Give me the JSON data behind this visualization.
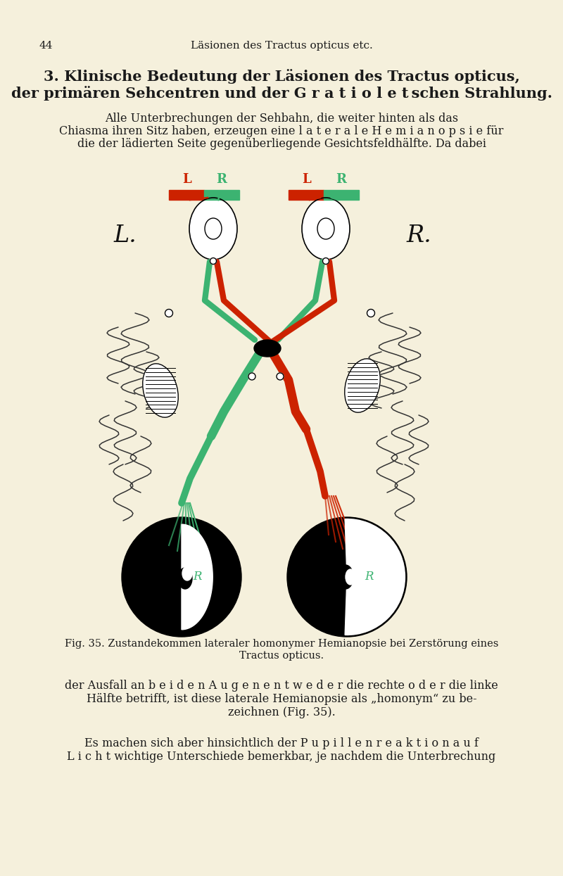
{
  "bg_color": "#f5f0dc",
  "page_number": "44",
  "header": "Läsionen des Tractus opticus etc.",
  "title_line1": "3. Klinische Bedeutung der Läsionen des Tractus opticus,",
  "title_line2": "der primären Sehcentren und der G r a t i o l e t schen Strahlung.",
  "para1_line1": "Alle Unterbrechungen der Sehbahn, die weiter hinten als das",
  "para1_line2": "Chiasma ihren Sitz haben, erzeugen eine l a t e r a l e H e m i a n o p s i e für",
  "para1_line3": "die der lädierten Seite gegenüberliegende Gesichtsfeldhälfte. Da dabei",
  "fig_caption1": "Fig. 35. Zustandekommen lateraler homonymer Hemianopsie bei Zerstörung eines",
  "fig_caption2": "Tractus opticus.",
  "para2_line1": "der Ausfall an b e i d e n A u g e n e n t w e d e r die rechte o d e r die linke",
  "para2_line2": "Hälfte betrifft, ist diese laterale Hemianopsie als „homonym“ zu be-",
  "para2_line3": "zeichnen (Fig. 35).",
  "para3_line1": "Es machen sich aber hinsichtlich der P u p i l l e n r e a k t i o n a u f",
  "para3_line2": "L i c h t wichtige Unterschiede bemerkbar, je nachdem die Unterbrechung",
  "green_color": "#3cb371",
  "red_color": "#cc2200",
  "black_color": "#111111",
  "text_color": "#1a1a1a"
}
